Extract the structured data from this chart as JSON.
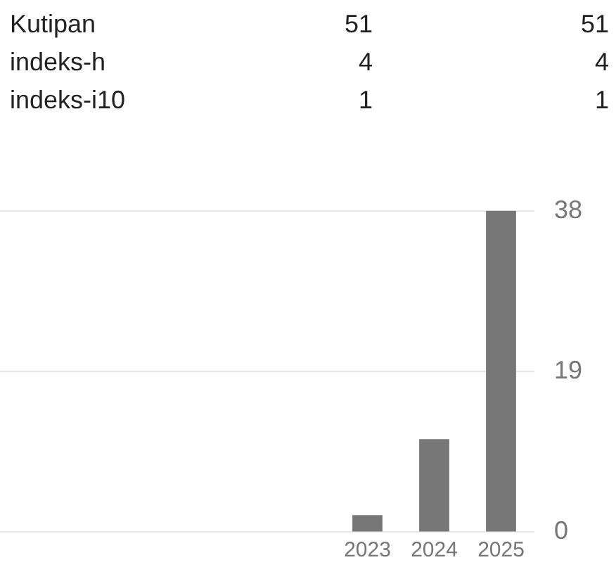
{
  "chart_data": {
    "type": "bar",
    "annotations": [
      "Kutipan",
      "51",
      "51",
      "indeks-h",
      "4",
      "4",
      "indeks-i10",
      "1",
      "1"
    ],
    "categories": [
      null,
      null,
      null,
      null,
      null,
      "2023",
      "2024",
      "2025"
    ],
    "values": [
      null,
      null,
      null,
      null,
      null,
      2,
      11,
      38
    ],
    "color": "#777777",
    "ylim": [
      0,
      38
    ],
    "yticks": [
      0,
      19,
      38
    ],
    "grid": "y",
    "legend": false
  }
}
